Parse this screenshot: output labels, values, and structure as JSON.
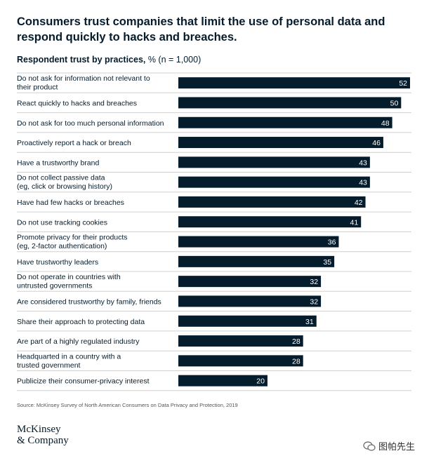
{
  "title": "Consumers trust companies that limit the use of personal data and respond quickly to hacks and breaches.",
  "subtitle_bold": "Respondent trust by practices,",
  "subtitle_rest": " % (n = 1,000)",
  "source": "Source: McKinsey Survey of North American Consumers on Data Privacy and Protection, 2019",
  "logo": {
    "line1": "McKinsey",
    "line2": "& Company"
  },
  "watermark": {
    "text": "图帕先生",
    "icon": "wechat-icon"
  },
  "colors": {
    "bar": "#051c2c",
    "bar_label": "#ffffff",
    "divider": "#d0d0d0",
    "text": "#051c2c"
  },
  "chart_data": {
    "type": "bar",
    "orientation": "horizontal",
    "title": "Consumers trust companies that limit the use of personal data and respond quickly to hacks and breaches.",
    "xlabel": "",
    "ylabel": "",
    "xlim": [
      0,
      52
    ],
    "grid": false,
    "categories": [
      "Do not ask for information not relevant to\ntheir product",
      "React quickly to hacks and breaches",
      "Do not ask for too much personal information",
      "Proactively report a hack or breach",
      "Have a trustworthy brand",
      "Do not collect passive data\n(eg, click or browsing history)",
      "Have had few hacks or breaches",
      "Do not use tracking cookies",
      "Promote privacy for their products\n(eg, 2-factor authentication)",
      "Have trustworthy leaders",
      "Do not operate in countries with\nuntrusted governments",
      "Are considered trustworthy by family, friends",
      "Share their approach to protecting data",
      "Are part of a highly regulated industry",
      "Headquarted in a country with a\ntrusted government",
      "Publicize their consumer-privacy interest"
    ],
    "values": [
      52,
      50,
      48,
      46,
      43,
      43,
      42,
      41,
      36,
      35,
      32,
      32,
      31,
      28,
      28,
      20
    ]
  }
}
